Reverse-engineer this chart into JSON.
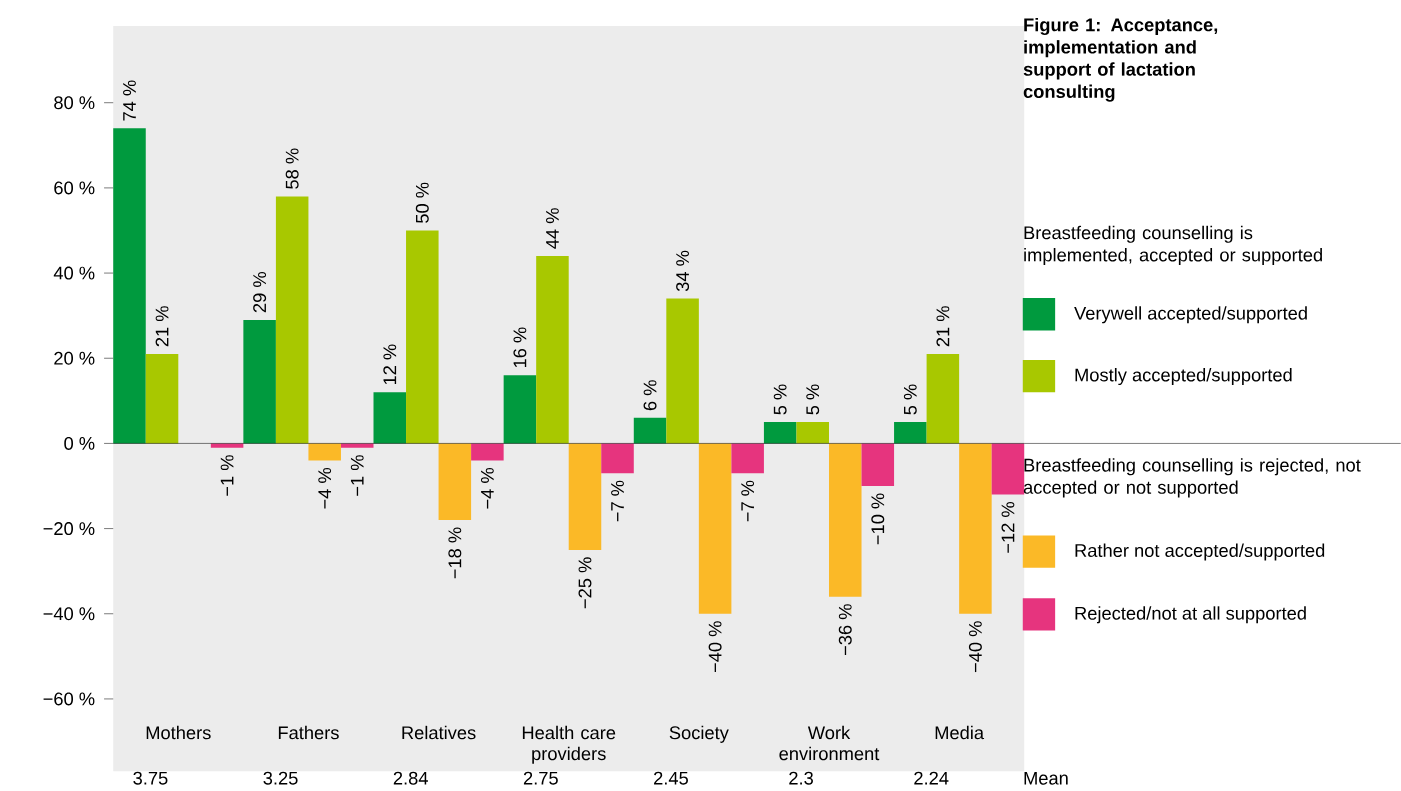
{
  "chart_data": {
    "type": "bar",
    "title": "Figure 1: Acceptance, implementation and support of lactation consulting",
    "categories": [
      "Mothers",
      "Fathers",
      "Relatives",
      "Health care providers",
      "Society",
      "Work environment",
      "Media"
    ],
    "series": [
      {
        "name": "Verywell accepted/supported",
        "color": "#009a3e",
        "values": [
          74,
          29,
          12,
          16,
          6,
          5,
          5
        ],
        "value_labels": [
          "74 %",
          "29 %",
          "12 %",
          "16 %",
          "6 %",
          "5 %",
          "5 %"
        ]
      },
      {
        "name": "Mostly accepted/supported",
        "color": "#a8c800",
        "values": [
          21,
          58,
          50,
          44,
          34,
          5,
          21
        ],
        "value_labels": [
          "21 %",
          "58 %",
          "50 %",
          "44 %",
          "34 %",
          "5 %",
          "21 %"
        ]
      },
      {
        "name": "Rather not accepted/supported",
        "color": "#fbb927",
        "values": [
          null,
          -4,
          -18,
          -25,
          -40,
          -36,
          -40
        ],
        "value_labels": [
          null,
          "−4 %",
          "−18 %",
          "−25 %",
          "−40 %",
          "−36 %",
          "−40 %"
        ]
      },
      {
        "name": "Rejected/not at all supported",
        "color": "#e6347e",
        "values": [
          -1,
          -1,
          -4,
          -7,
          -7,
          -10,
          -12
        ],
        "value_labels": [
          "−1 %",
          "−1 %",
          "−4 %",
          "−7 %",
          "−7 %",
          "−10 %",
          "−12 %"
        ]
      }
    ],
    "ylim": [
      -77,
      98
    ],
    "yticks": [
      {
        "value": -60,
        "label": "−60 %"
      },
      {
        "value": -40,
        "label": "−40 %"
      },
      {
        "value": -20,
        "label": "−20 %"
      },
      {
        "value": 0,
        "label": "0 %"
      },
      {
        "value": 20,
        "label": "20 %"
      },
      {
        "value": 40,
        "label": "40 %"
      },
      {
        "value": 60,
        "label": "60 %"
      },
      {
        "value": 80,
        "label": "80 %"
      }
    ],
    "ref_lines": [
      {
        "axis": "y",
        "value": 0,
        "color": "#000000"
      }
    ],
    "legend": "right",
    "annotations": [
      "Breastfeeding counselling is implemented, accepted or supported",
      "Breastfeeding counselling is rejected, not accepted or not supported",
      "3.75",
      "3.25",
      "2.84",
      "2.75",
      "2.45",
      "2.3",
      "2.24",
      "Mean"
    ]
  }
}
